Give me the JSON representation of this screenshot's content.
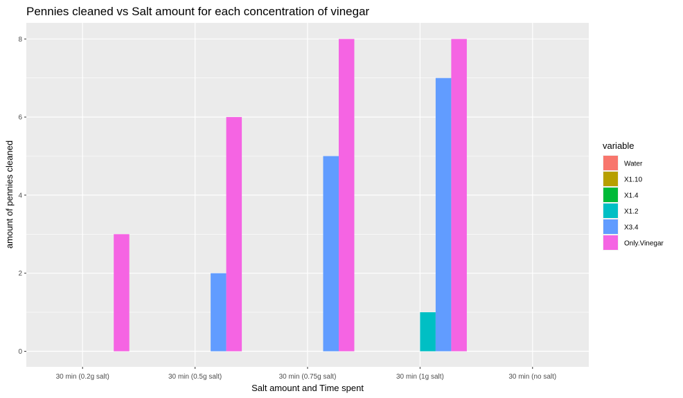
{
  "chart_data": {
    "type": "bar",
    "title": "Pennies cleaned vs Salt amount for each concentration of vinegar",
    "xlabel": "Salt amount and Time spent",
    "ylabel": "amount of pennies cleaned",
    "categories": [
      "30 min (0.2g salt)",
      "30 min (0.5g salt)",
      "30 min (0.75g salt)",
      "30 min (1g salt)",
      "30 min (no salt)"
    ],
    "ylim": [
      0,
      8.4
    ],
    "yticks": [
      0,
      2,
      4,
      6,
      8
    ],
    "grid": true,
    "legend_position": "right",
    "legend_title": "variable",
    "series": [
      {
        "name": "Water",
        "color": "#F8766D",
        "values": [
          0,
          0,
          0,
          0,
          0
        ]
      },
      {
        "name": "X1.10",
        "color": "#B79F00",
        "values": [
          0,
          0,
          0,
          0,
          0
        ]
      },
      {
        "name": "X1.4",
        "color": "#00BA38",
        "values": [
          0,
          0,
          0,
          0,
          0
        ]
      },
      {
        "name": "X1.2",
        "color": "#00BFC4",
        "values": [
          0,
          0,
          0,
          1,
          0
        ]
      },
      {
        "name": "X3.4",
        "color": "#619CFF",
        "values": [
          0,
          2,
          5,
          7,
          0
        ]
      },
      {
        "name": "Only.Vinegar",
        "color": "#F564E3",
        "values": [
          3,
          6,
          8,
          8,
          0
        ]
      }
    ]
  }
}
